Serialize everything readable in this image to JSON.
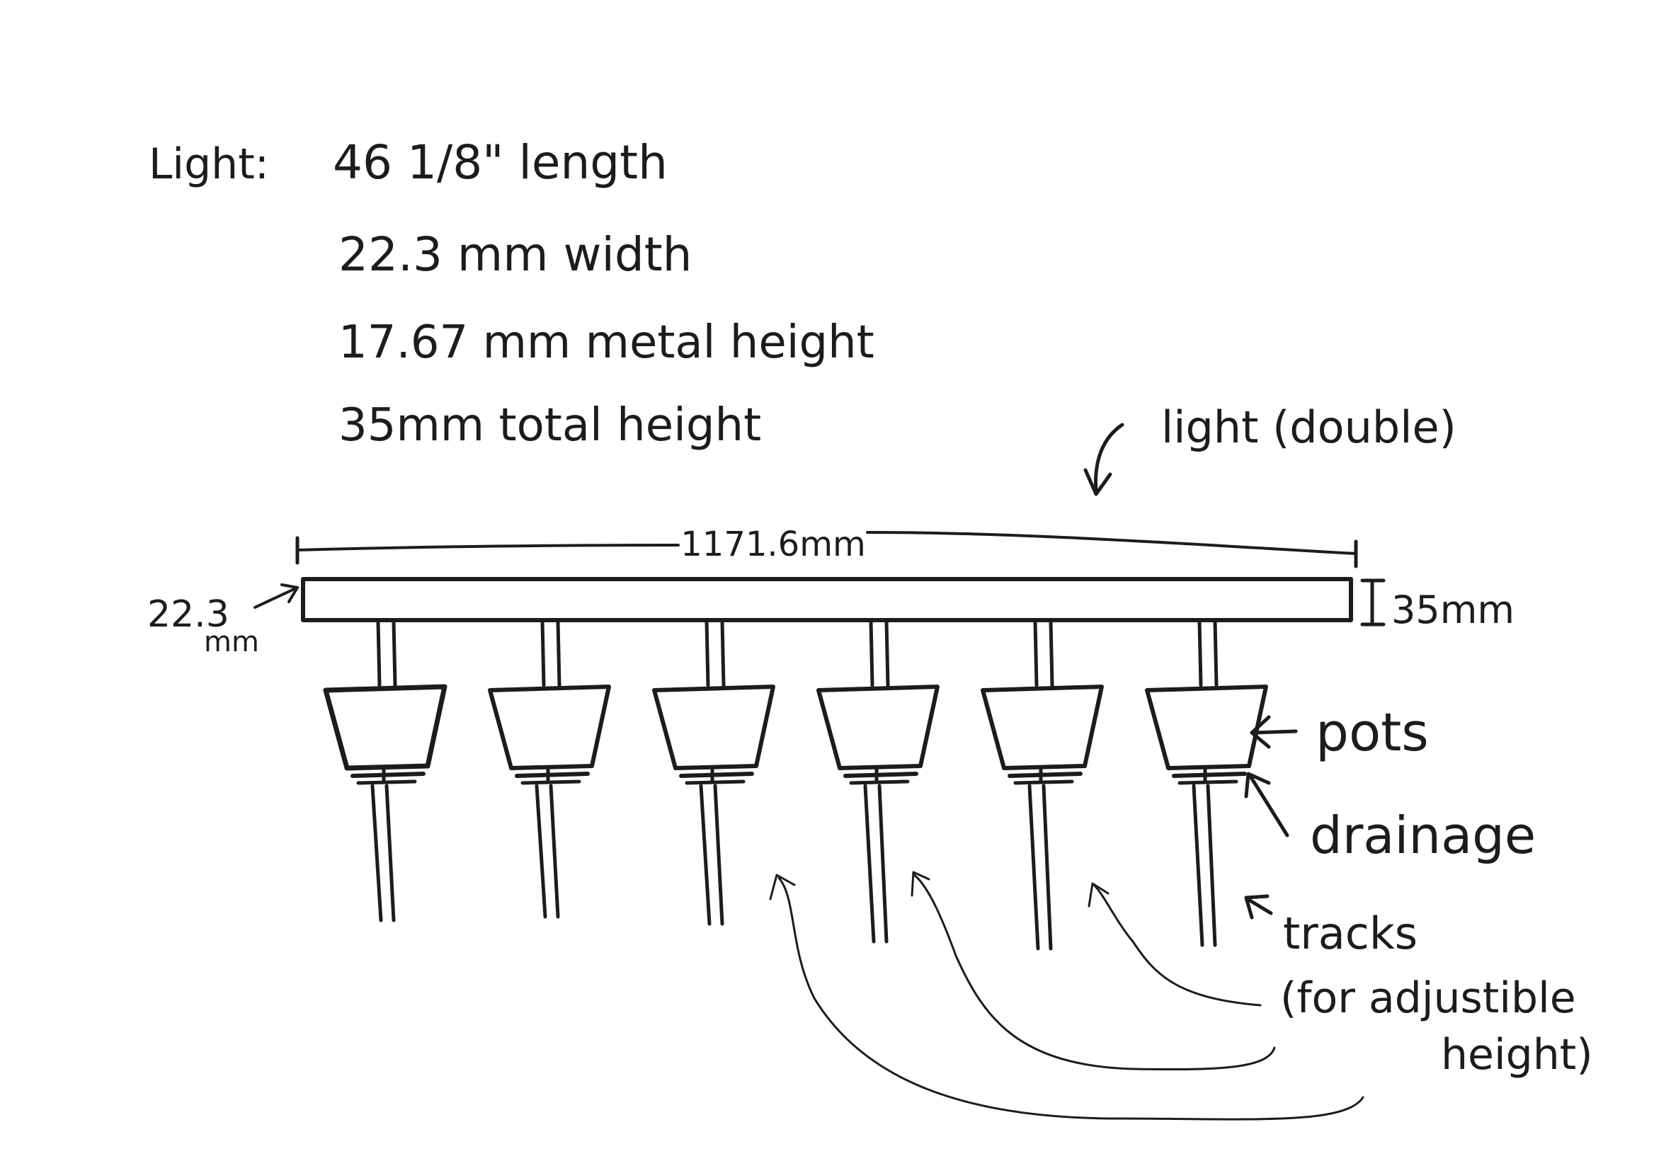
{
  "specs": {
    "label": "Light:",
    "lines": [
      "46 1/8\" length",
      "22.3 mm width",
      "17.67 mm metal height",
      "35mm total height"
    ]
  },
  "drawing": {
    "light_label": "light (double)",
    "length_dim": "1171.6mm",
    "width_dim_value": "22.3",
    "width_dim_unit": "mm",
    "height_dim": "35mm",
    "pots_label": "pots",
    "drainage_label": "drainage",
    "tracks_label": "tracks",
    "tracks_note": [
      "(for adjustible",
      "height)"
    ]
  },
  "pot_count": 6
}
